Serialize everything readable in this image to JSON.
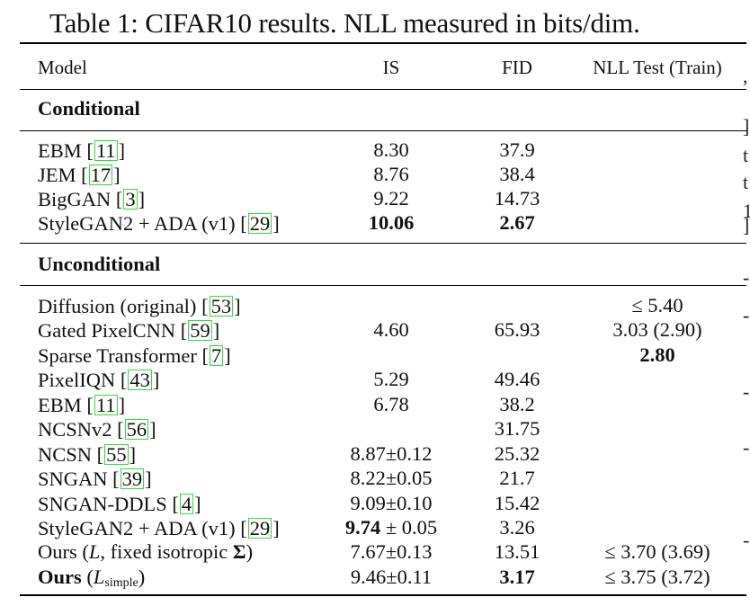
{
  "caption": "Table 1: CIFAR10 results. NLL measured in bits/dim.",
  "columns": {
    "model": "Model",
    "is": "IS",
    "fid": "FID",
    "nll": "NLL Test (Train)"
  },
  "sections": {
    "conditional": "Conditional",
    "unconditional": "Unconditional"
  },
  "conditional_rows": [
    {
      "name": "EBM",
      "cite": "11",
      "is": "8.30",
      "fid": "37.9",
      "nll": ""
    },
    {
      "name": "JEM",
      "cite": "17",
      "is": "8.76",
      "fid": "38.4",
      "nll": ""
    },
    {
      "name": "BigGAN",
      "cite": "3",
      "is": "9.22",
      "fid": "14.73",
      "nll": ""
    },
    {
      "name": "StyleGAN2 + ADA (v1)",
      "cite": "29",
      "is": "10.06",
      "fid": "2.67",
      "nll": ""
    }
  ],
  "unconditional_rows": [
    {
      "name": "Diffusion (original)",
      "cite": "53",
      "is": "",
      "fid": "",
      "nll": "≤ 5.40"
    },
    {
      "name": "Gated PixelCNN",
      "cite": "59",
      "is": "4.60",
      "fid": "65.93",
      "nll": "3.03 (2.90)"
    },
    {
      "name": "Sparse Transformer",
      "cite": "7",
      "is": "",
      "fid": "",
      "nll": "2.80"
    },
    {
      "name": "PixelIQN",
      "cite": "43",
      "is": "5.29",
      "fid": "49.46",
      "nll": ""
    },
    {
      "name": "EBM",
      "cite": "11",
      "is": "6.78",
      "fid": "38.2",
      "nll": ""
    },
    {
      "name": "NCSNv2",
      "cite": "56",
      "is": "",
      "fid": "31.75",
      "nll": ""
    },
    {
      "name": "NCSN",
      "cite": "55",
      "is": "8.87±0.12",
      "fid": "25.32",
      "nll": ""
    },
    {
      "name": "SNGAN",
      "cite": "39",
      "is": "8.22±0.05",
      "fid": "21.7",
      "nll": ""
    },
    {
      "name": "SNGAN-DDLS",
      "cite": "4",
      "is": "9.09±0.10",
      "fid": "15.42",
      "nll": ""
    },
    {
      "name": "StyleGAN2 + ADA (v1)",
      "cite": "29",
      "is_bold": "9.74",
      "is_rest": " ± 0.05",
      "fid": "3.26",
      "nll": ""
    },
    {
      "name_pre": "Ours (",
      "name_var": "L",
      "name_post": ", fixed isotropic ",
      "name_sigma": "Σ",
      "name_end": ")",
      "is": "7.67±0.13",
      "fid": "13.51",
      "nll": "≤ 3.70 (3.69)"
    },
    {
      "name_bold": "Ours",
      "name_pre": " (",
      "name_var": "L",
      "name_sub": "simple",
      "name_end": ")",
      "is": "9.46±0.11",
      "fid": "3.17",
      "nll": "≤ 3.75 (3.72)"
    }
  ],
  "right_edge_glyphs": [
    ",",
    "]",
    "t",
    "t",
    "1",
    "]",
    "-",
    "-",
    "-",
    "-",
    "-"
  ]
}
